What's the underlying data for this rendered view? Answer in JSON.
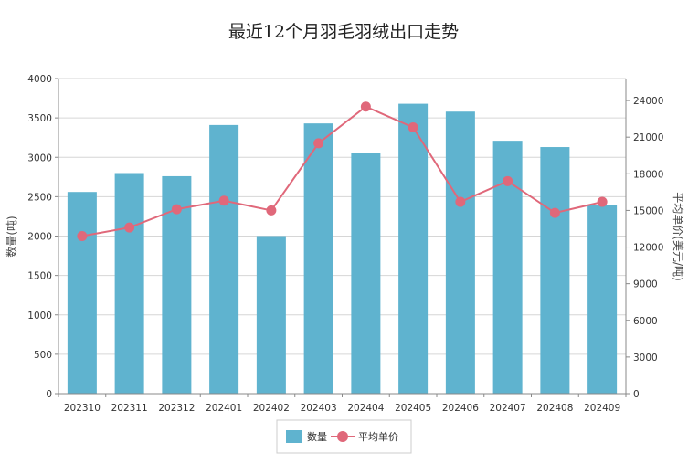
{
  "chart_data": {
    "type": "bar",
    "title": "最近12个月羽毛羽绒出口走势",
    "categories": [
      "202310",
      "202311",
      "202312",
      "202401",
      "202402",
      "202403",
      "202404",
      "202405",
      "202406",
      "202407",
      "202408",
      "202409"
    ],
    "series": [
      {
        "name": "数量",
        "type": "bar",
        "axis": "left",
        "color": "#5fb3cf",
        "values": [
          2560,
          2800,
          2760,
          3410,
          2000,
          3430,
          3050,
          3680,
          3580,
          3210,
          3130,
          2390
        ]
      },
      {
        "name": "平均单价",
        "type": "line",
        "axis": "right",
        "color": "#e0687a",
        "values": [
          12900,
          13600,
          15100,
          15800,
          15000,
          20500,
          23500,
          21800,
          15700,
          17400,
          14800,
          15700
        ]
      }
    ],
    "ylabel": "数量(吨)",
    "y2label": "平均单价(美元/吨)",
    "ylim": [
      0,
      4000
    ],
    "yticks": [
      0,
      500,
      1000,
      1500,
      2000,
      2500,
      3000,
      3500,
      4000
    ],
    "y2lim": [
      0,
      25800
    ],
    "y2ticks": [
      0,
      3000,
      6000,
      9000,
      12000,
      15000,
      18000,
      21000,
      24000
    ],
    "grid": true,
    "legend": "bottom-center"
  }
}
